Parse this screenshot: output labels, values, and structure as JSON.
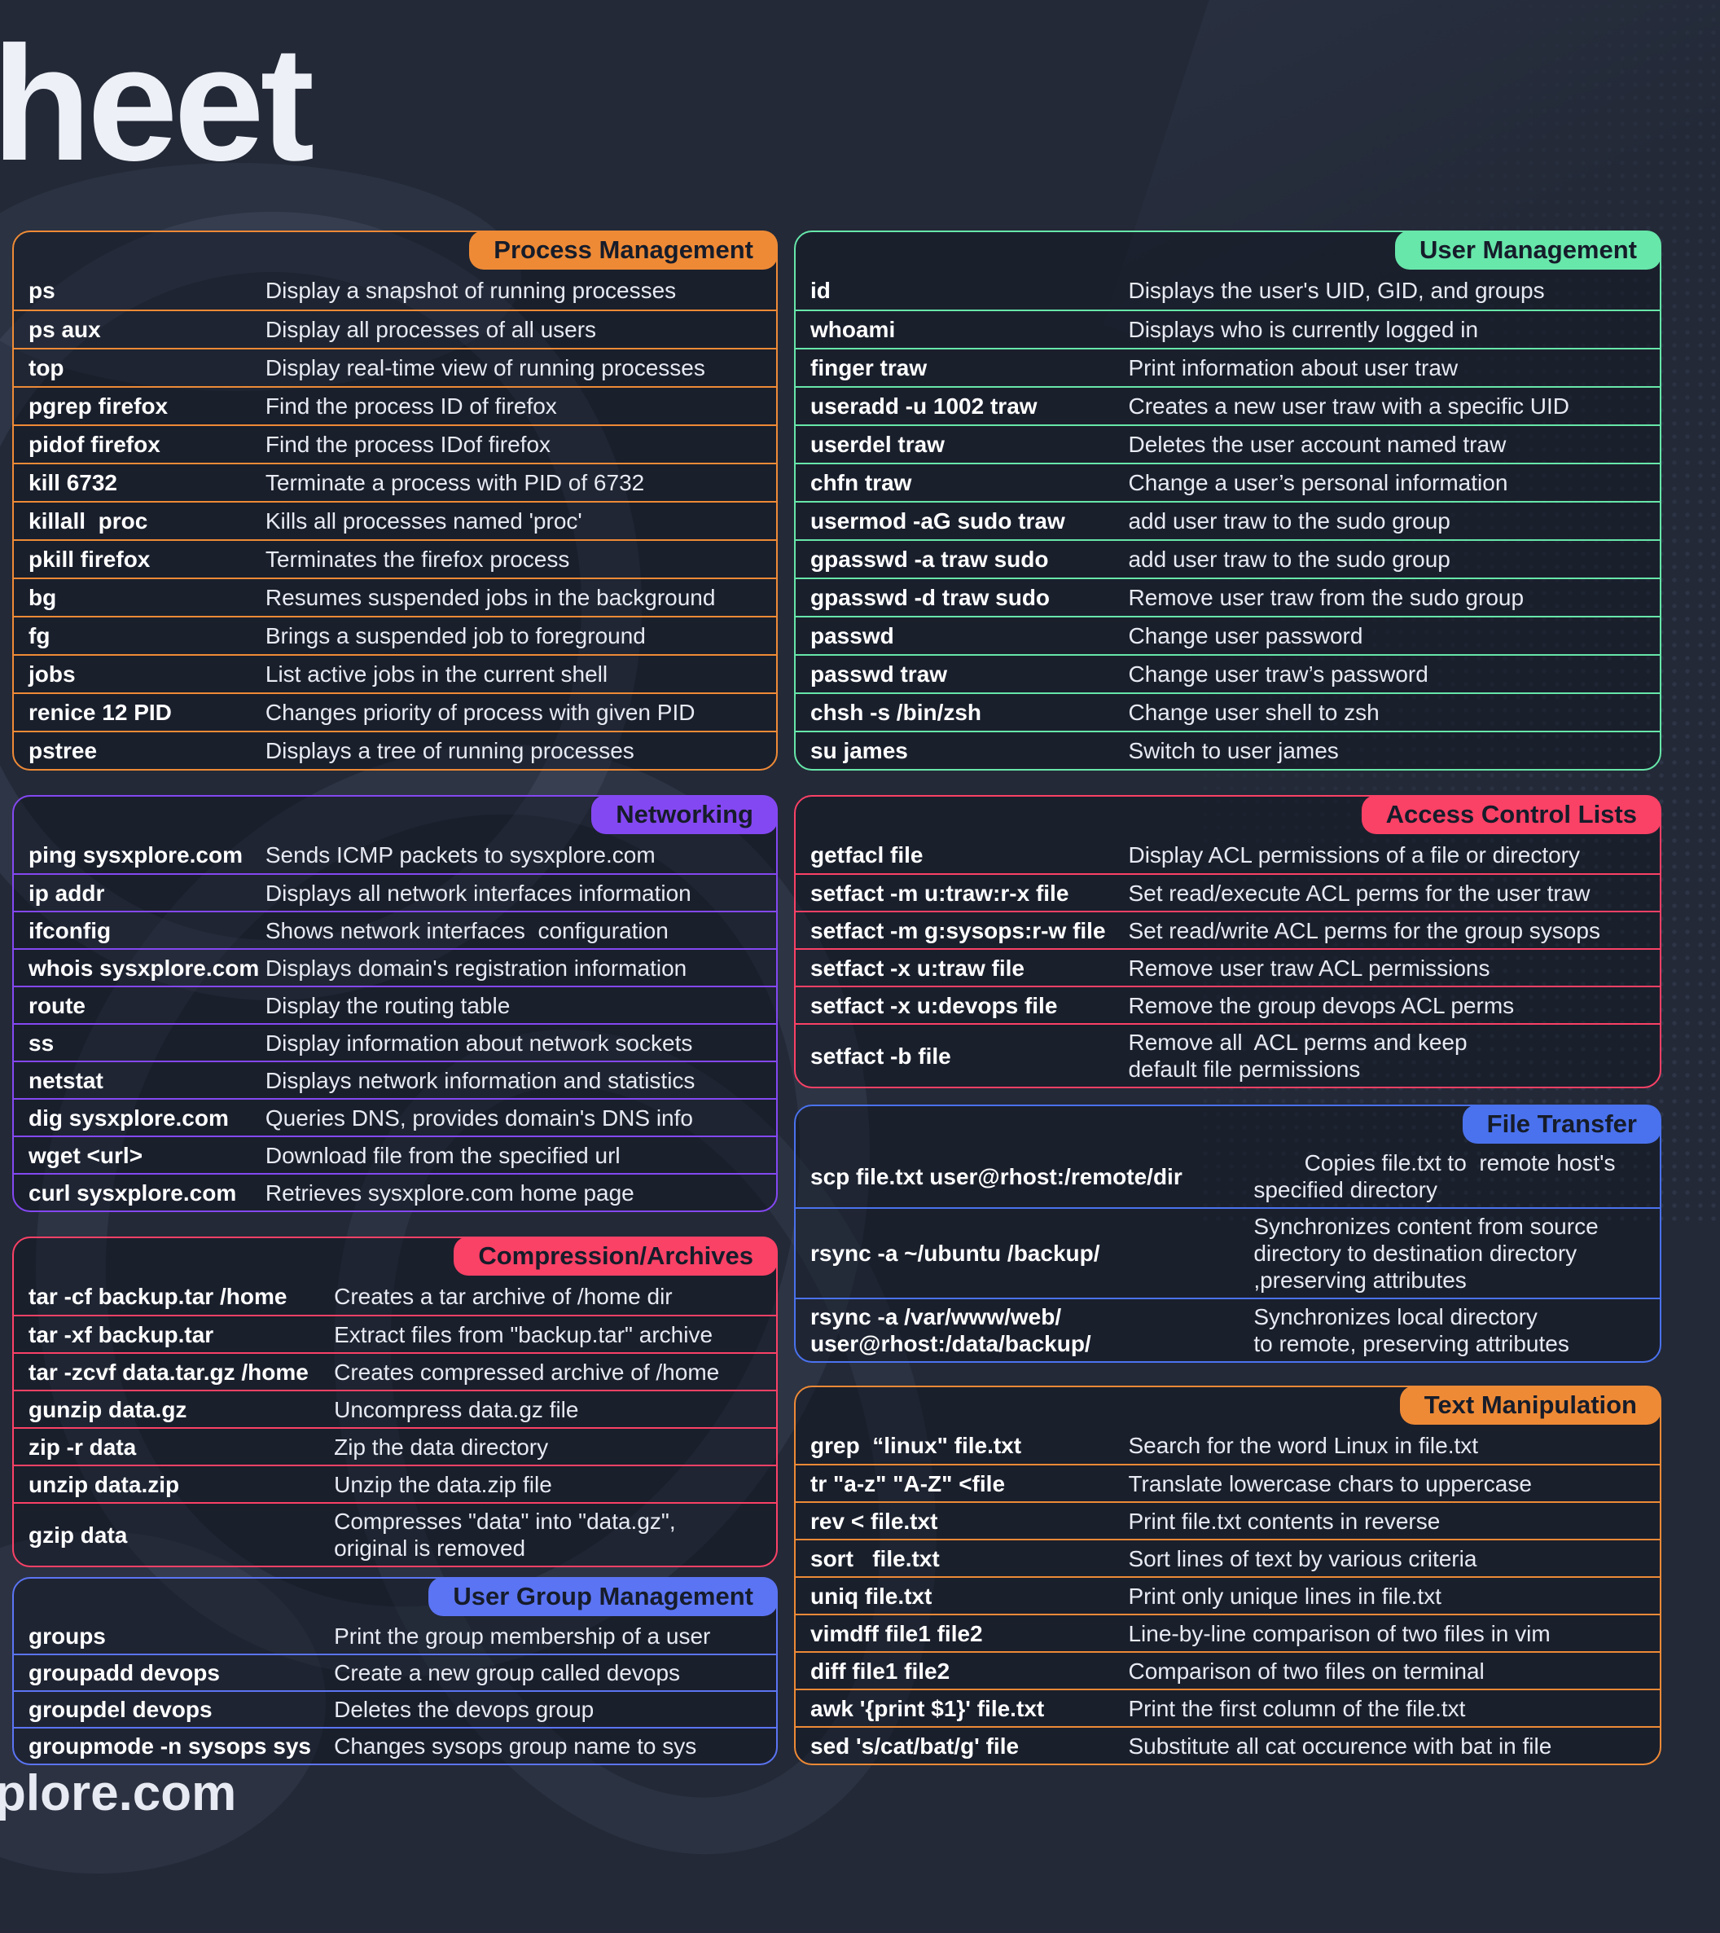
{
  "page": {
    "title_visible": "heet",
    "footer_visible": "plore.com",
    "background_color": "#232937"
  },
  "sections": [
    {
      "id": "process-management",
      "title": "Process Management",
      "color": "#EE8A36",
      "rows": [
        {
          "cmd": "ps",
          "desc": "Display a snapshot of running processes"
        },
        {
          "cmd": "ps aux",
          "desc": "Display all processes of all users"
        },
        {
          "cmd": "top",
          "desc": "Display real-time view of running processes"
        },
        {
          "cmd": "pgrep firefox",
          "desc": "Find the process ID of firefox"
        },
        {
          "cmd": "pidof firefox",
          "desc": "Find the process IDof firefox"
        },
        {
          "cmd": "kill 6732",
          "desc": "Terminate a process with PID of 6732"
        },
        {
          "cmd": "killall  proc",
          "desc": "Kills all processes named 'proc'"
        },
        {
          "cmd": "pkill firefox",
          "desc": "Terminates the firefox process"
        },
        {
          "cmd": "bg",
          "desc": "Resumes suspended jobs in the background"
        },
        {
          "cmd": "fg",
          "desc": "Brings a suspended job to foreground"
        },
        {
          "cmd": "jobs",
          "desc": "List active jobs in the current shell"
        },
        {
          "cmd": "renice 12 PID",
          "desc": "Changes priority of process with given PID"
        },
        {
          "cmd": "pstree",
          "desc": "Displays a tree of running processes"
        }
      ]
    },
    {
      "id": "user-management",
      "title": "User Management",
      "color": "#67E7AA",
      "rows": [
        {
          "cmd": "id",
          "desc": "Displays the user's UID, GID, and groups"
        },
        {
          "cmd": "whoami",
          "desc": "Displays who is currently logged in"
        },
        {
          "cmd": "finger traw",
          "desc": "Print information about user traw"
        },
        {
          "cmd": "useradd -u 1002 traw",
          "desc": "Creates a new user traw with a specific UID"
        },
        {
          "cmd": "userdel traw",
          "desc": "Deletes the user account named traw"
        },
        {
          "cmd": "chfn traw",
          "desc": "Change a user’s personal information"
        },
        {
          "cmd": "usermod -aG sudo traw",
          "desc": "add user traw to the sudo group"
        },
        {
          "cmd": "gpasswd -a traw sudo",
          "desc": "add user traw to the sudo group"
        },
        {
          "cmd": "gpasswd -d traw sudo",
          "desc": "Remove user traw from the sudo group"
        },
        {
          "cmd": "passwd",
          "desc": "Change user password"
        },
        {
          "cmd": "passwd traw",
          "desc": "Change user traw’s password"
        },
        {
          "cmd": "chsh -s /bin/zsh",
          "desc": "Change user shell to zsh"
        },
        {
          "cmd": "su james",
          "desc": "Switch to user james"
        }
      ]
    },
    {
      "id": "networking",
      "title": "Networking",
      "color": "#8448F2",
      "rows": [
        {
          "cmd": "ping sysxplore.com",
          "desc": "Sends ICMP packets to sysxplore.com"
        },
        {
          "cmd": "ip addr",
          "desc": "Displays all network interfaces information"
        },
        {
          "cmd": "ifconfig",
          "desc": "Shows network interfaces  configuration"
        },
        {
          "cmd": "whois sysxplore.com",
          "desc": "Displays domain's registration information"
        },
        {
          "cmd": "route",
          "desc": "Display the routing table"
        },
        {
          "cmd": "ss",
          "desc": "Display information about network sockets"
        },
        {
          "cmd": "netstat",
          "desc": "Displays network information and statistics"
        },
        {
          "cmd": "dig sysxplore.com",
          "desc": "Queries DNS, provides domain's DNS info"
        },
        {
          "cmd": "wget <url>",
          "desc": "Download file from the specified url"
        },
        {
          "cmd": "curl sysxplore.com",
          "desc": "Retrieves sysxplore.com home page"
        }
      ]
    },
    {
      "id": "access-control-lists",
      "title": "Access Control Lists",
      "color": "#FA4166",
      "rows": [
        {
          "cmd": "getfacl file",
          "desc": "Display ACL permissions of a file or directory"
        },
        {
          "cmd": "setfact -m u:traw:r-x file",
          "desc": "Set read/execute ACL perms for the user traw"
        },
        {
          "cmd": "setfact -m g:sysops:r-w file",
          "desc": "Set read/write ACL perms for the group sysops"
        },
        {
          "cmd": "setfact -x u:traw file",
          "desc": "Remove user traw ACL permissions"
        },
        {
          "cmd": "setfact -x u:devops file",
          "desc": "Remove the group devops ACL perms"
        },
        {
          "cmd": "setfact -b file",
          "desc": "Remove all  ACL perms and keep\ndefault file permissions"
        }
      ]
    },
    {
      "id": "file-transfer",
      "title": "File Transfer",
      "color": "#4A72EE",
      "rows": [
        {
          "cmd": "scp file.txt user@rhost:/remote/dir",
          "desc": "        Copies file.txt to  remote host's\nspecified directory"
        },
        {
          "cmd": "rsync -a ~/ubuntu /backup/",
          "desc": "Synchronizes content from source\ndirectory to destination directory\n,preserving attributes"
        },
        {
          "cmd": "rsync -a /var/www/web/\nuser@rhost:/data/backup/",
          "desc": "Synchronizes local directory\nto remote, preserving attributes"
        }
      ]
    },
    {
      "id": "compression-archives",
      "title": "Compression/Archives",
      "color": "#FA4166",
      "rows": [
        {
          "cmd": "tar -cf backup.tar /home",
          "desc": "Creates a tar archive of /home dir"
        },
        {
          "cmd": "tar -xf backup.tar",
          "desc": "Extract files from \"backup.tar\" archive"
        },
        {
          "cmd": "tar -zcvf data.tar.gz /home",
          "desc": "Creates compressed archive of /home"
        },
        {
          "cmd": "gunzip data.gz",
          "desc": "Uncompress data.gz file"
        },
        {
          "cmd": "zip -r data",
          "desc": "Zip the data directory"
        },
        {
          "cmd": "unzip data.zip",
          "desc": "Unzip the data.zip file"
        },
        {
          "cmd": "gzip data",
          "desc": "Compresses \"data\" into \"data.gz\",\noriginal is removed"
        }
      ]
    },
    {
      "id": "user-group-management",
      "title": "User Group Management",
      "color": "#5B74F3",
      "rows": [
        {
          "cmd": "groups",
          "desc": "Print the group membership of a user"
        },
        {
          "cmd": "groupadd devops",
          "desc": "Create a new group called devops"
        },
        {
          "cmd": "groupdel devops",
          "desc": "Deletes the devops group"
        },
        {
          "cmd": "groupmode -n sysops sys",
          "desc": "Changes sysops group name to sys"
        }
      ]
    },
    {
      "id": "text-manipulation",
      "title": "Text Manipulation",
      "color": "#EE8A36",
      "rows": [
        {
          "cmd": "grep  “linux\" file.txt",
          "desc": "Search for the word Linux in file.txt"
        },
        {
          "cmd": "tr \"a-z\" \"A-Z\" <file",
          "desc": "Translate lowercase chars to uppercase"
        },
        {
          "cmd": "rev < file.txt",
          "desc": "Print file.txt contents in reverse"
        },
        {
          "cmd": "sort   file.txt",
          "desc": "Sort lines of text by various criteria"
        },
        {
          "cmd": "uniq file.txt",
          "desc": "Print only unique lines in file.txt"
        },
        {
          "cmd": "vimdff file1 file2",
          "desc": "Line-by-line comparison of two files in vim"
        },
        {
          "cmd": "diff file1 file2",
          "desc": "Comparison of two files on terminal"
        },
        {
          "cmd": "awk '{print $1}' file.txt",
          "desc": "Print the first column of the file.txt"
        },
        {
          "cmd": "sed 's/cat/bat/g' file",
          "desc": "Substitute all cat occurence with bat in file"
        }
      ]
    }
  ]
}
